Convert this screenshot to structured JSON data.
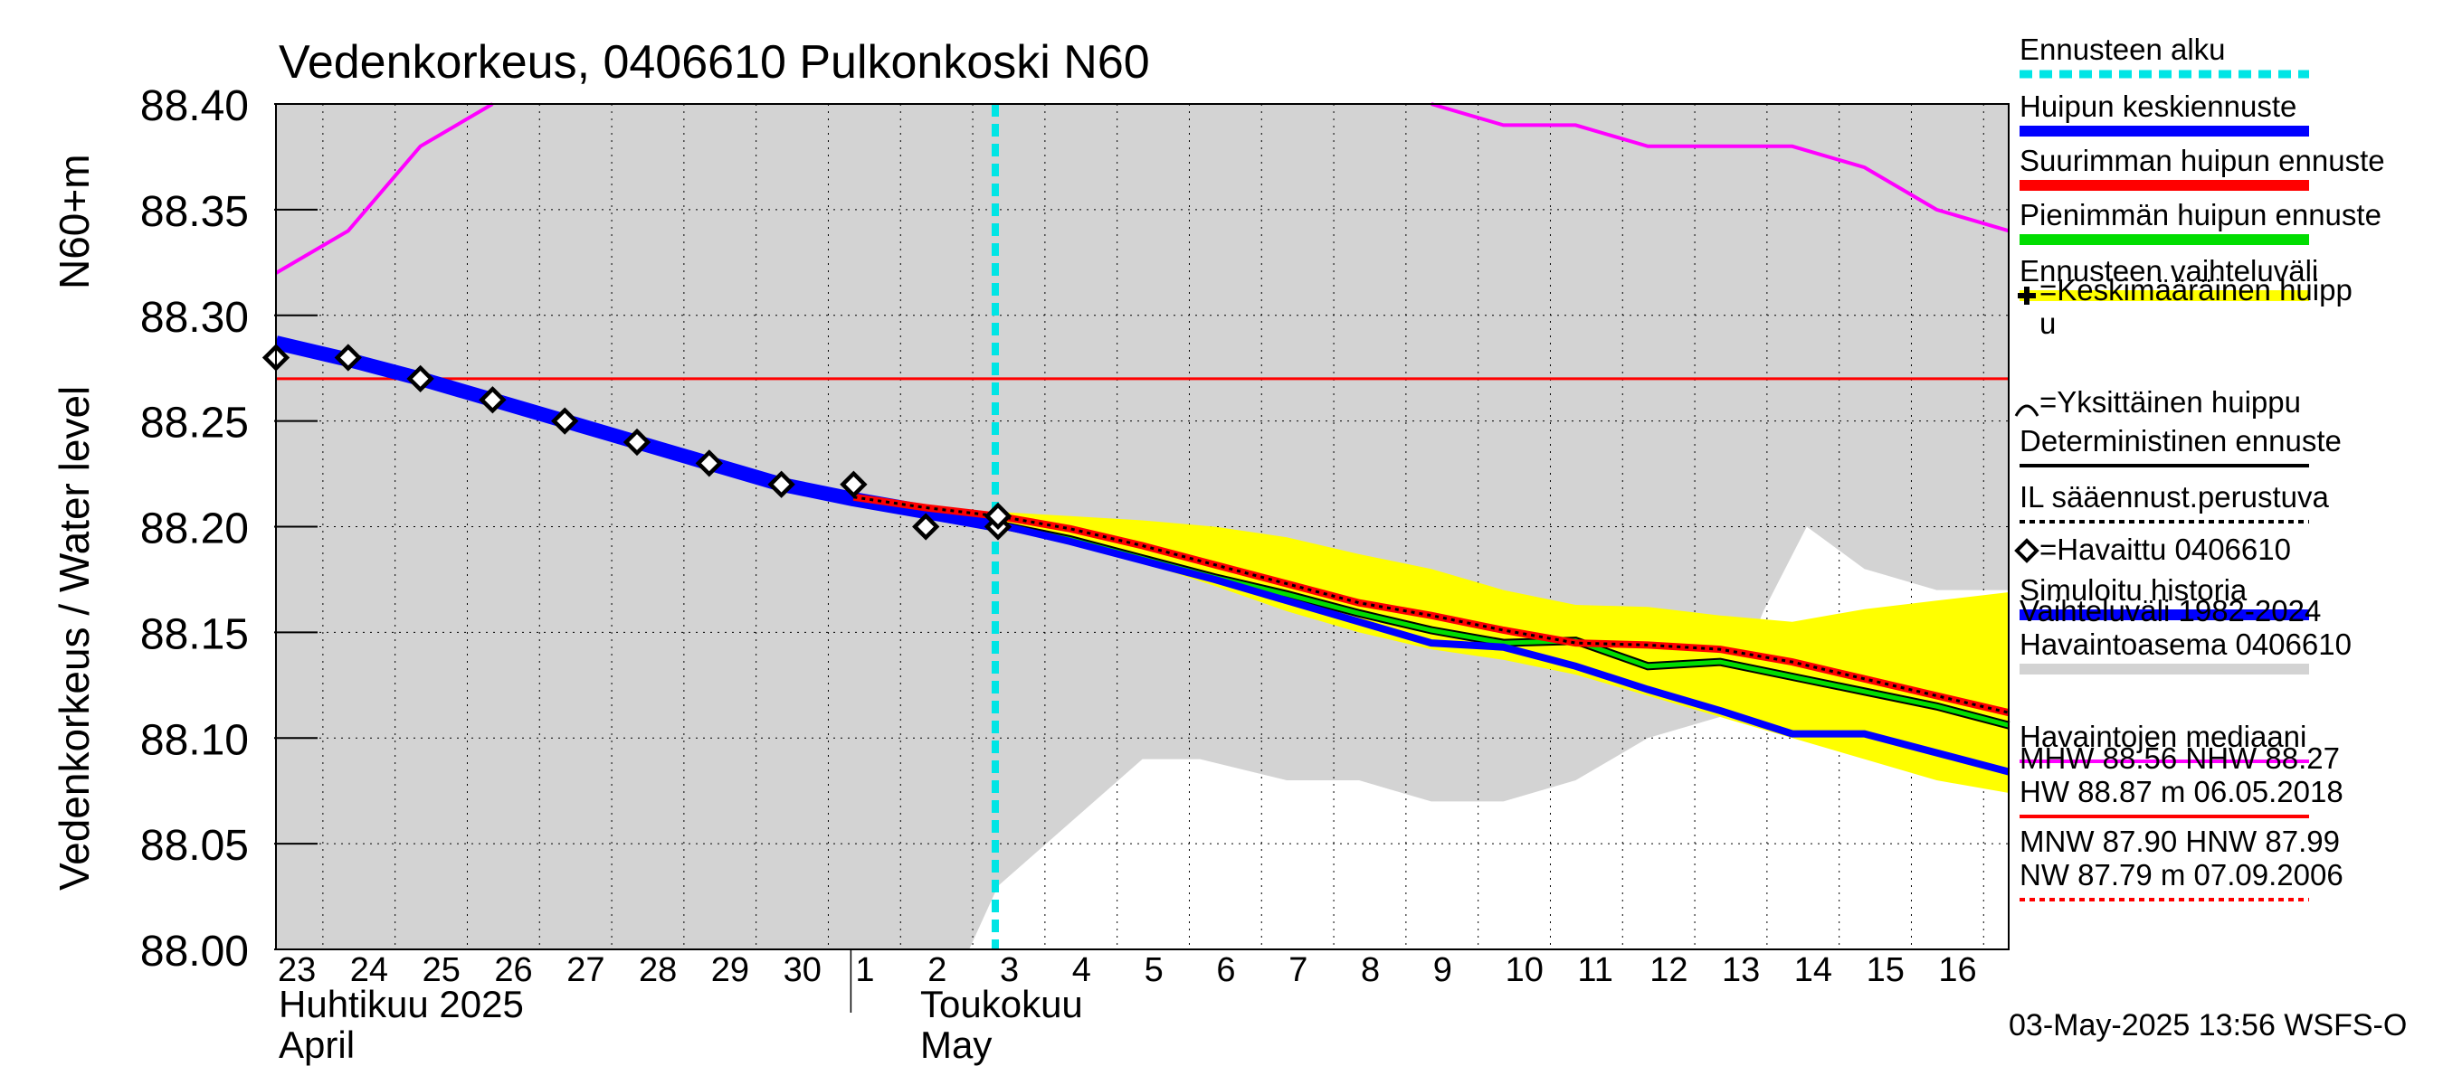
{
  "chart_data": {
    "type": "line",
    "title": "Vedenkorkeus, 0406610 Pulkonkoski N60",
    "ylabel_left": "Vedenkorkeus / Water level",
    "ylabel_right": "N60+m",
    "ylim": [
      88.0,
      88.4
    ],
    "y_ticks": [
      "88.00",
      "88.05",
      "88.10",
      "88.15",
      "88.20",
      "88.25",
      "88.30",
      "88.35",
      "88.40"
    ],
    "x_day_labels": [
      "23",
      "24",
      "25",
      "26",
      "27",
      "28",
      "29",
      "30",
      "1",
      "2",
      "3",
      "4",
      "5",
      "6",
      "7",
      "8",
      "9",
      "10",
      "11",
      "12",
      "13",
      "14",
      "15",
      "16"
    ],
    "x_month_labels": {
      "april_fi": "Huhtikuu  2025",
      "april_en": "April",
      "may_fi": "Toukokuu",
      "may_en": "May"
    },
    "forecast_start_day_index": 10,
    "grid": true,
    "history_band": {
      "upper": [
        [
          0,
          88.4
        ],
        [
          23.0,
          88.4
        ],
        [
          24.0,
          88.4
        ]
      ],
      "lower": [
        [
          0,
          88.0
        ],
        [
          9.6,
          88.0
        ],
        [
          10.0,
          88.03
        ],
        [
          12.0,
          88.09
        ],
        [
          12.8,
          88.09
        ],
        [
          14.0,
          88.08
        ],
        [
          15.0,
          88.08
        ],
        [
          16.0,
          88.07
        ],
        [
          17.0,
          88.07
        ],
        [
          18.0,
          88.08
        ],
        [
          19.0,
          88.1
        ],
        [
          20.0,
          88.11
        ],
        [
          20.6,
          88.16
        ],
        [
          21.2,
          88.2
        ],
        [
          22.0,
          88.18
        ],
        [
          23.0,
          88.17
        ],
        [
          24.0,
          88.17
        ]
      ]
    },
    "series": [
      {
        "name": "Havaintojen mediaani",
        "color": "#ff00ff",
        "segments": [
          [
            [
              0,
              88.32
            ],
            [
              1,
              88.34
            ],
            [
              2,
              88.38
            ],
            [
              3,
              88.4
            ]
          ],
          [
            [
              16,
              88.4
            ],
            [
              17,
              88.39
            ],
            [
              18,
              88.39
            ],
            [
              19,
              88.38
            ],
            [
              20,
              88.38
            ],
            [
              21,
              88.38
            ],
            [
              22,
              88.37
            ],
            [
              23,
              88.35
            ],
            [
              24,
              88.34
            ]
          ]
        ]
      },
      {
        "name": "Simuloitu historia",
        "color": "#0000ff",
        "points": [
          [
            0,
            88.287
          ],
          [
            1,
            88.279
          ],
          [
            2,
            88.27
          ],
          [
            3,
            88.26
          ],
          [
            4,
            88.25
          ],
          [
            5,
            88.24
          ],
          [
            6,
            88.23
          ],
          [
            7,
            88.22
          ],
          [
            8,
            88.213
          ],
          [
            9,
            88.207
          ],
          [
            10,
            88.201
          ]
        ]
      },
      {
        "name": "Ennusteen vaihteluväli",
        "color": "#ffff00",
        "upper": [
          [
            10,
            88.207
          ],
          [
            11,
            88.205
          ],
          [
            12,
            88.203
          ],
          [
            13,
            88.2
          ],
          [
            14,
            88.195
          ],
          [
            15,
            88.187
          ],
          [
            16,
            88.18
          ],
          [
            17,
            88.17
          ],
          [
            18,
            88.163
          ],
          [
            19,
            88.162
          ],
          [
            20,
            88.158
          ],
          [
            21,
            88.155
          ],
          [
            22,
            88.161
          ],
          [
            23,
            88.165
          ],
          [
            24,
            88.169
          ]
        ],
        "lower": [
          [
            10,
            88.2
          ],
          [
            11,
            88.194
          ],
          [
            12,
            88.183
          ],
          [
            13,
            88.172
          ],
          [
            14,
            88.16
          ],
          [
            15,
            88.15
          ],
          [
            16,
            88.142
          ],
          [
            17,
            88.137
          ],
          [
            18,
            88.13
          ],
          [
            19,
            88.12
          ],
          [
            20,
            88.11
          ],
          [
            21,
            88.1
          ],
          [
            22,
            88.09
          ],
          [
            23,
            88.08
          ],
          [
            24,
            88.074
          ]
        ]
      },
      {
        "name": "Huipun keskiennuste",
        "color": "#0000ff",
        "points": [
          [
            10,
            88.201
          ],
          [
            11,
            88.193
          ],
          [
            12,
            88.184
          ],
          [
            13,
            88.175
          ],
          [
            14,
            88.165
          ],
          [
            15,
            88.155
          ],
          [
            16,
            88.145
          ],
          [
            17,
            88.143
          ],
          [
            18,
            88.134
          ],
          [
            19,
            88.123
          ],
          [
            20,
            88.113
          ],
          [
            21,
            88.102
          ],
          [
            22,
            88.102
          ],
          [
            23,
            88.093
          ],
          [
            24,
            88.084
          ]
        ]
      },
      {
        "name": "Pienimmän huipun ennuste",
        "color": "#00dd00",
        "points": [
          [
            10,
            88.201
          ],
          [
            11,
            88.194
          ],
          [
            12,
            88.185
          ],
          [
            13,
            88.176
          ],
          [
            14,
            88.168
          ],
          [
            15,
            88.159
          ],
          [
            16,
            88.151
          ],
          [
            17,
            88.145
          ],
          [
            18,
            88.146
          ],
          [
            19,
            88.134
          ],
          [
            20,
            88.136
          ],
          [
            21,
            88.129
          ],
          [
            22,
            88.122
          ],
          [
            23,
            88.115
          ],
          [
            24,
            88.106
          ]
        ]
      },
      {
        "name": "Deterministinen ennuste",
        "color": "#000000",
        "points": [
          [
            8,
            88.214
          ],
          [
            9,
            88.209
          ],
          [
            10,
            88.205
          ],
          [
            11,
            88.199
          ],
          [
            12,
            88.191
          ],
          [
            13,
            88.182
          ],
          [
            14,
            88.173
          ],
          [
            15,
            88.164
          ],
          [
            16,
            88.158
          ],
          [
            17,
            88.151
          ],
          [
            18,
            88.145
          ],
          [
            19,
            88.144
          ],
          [
            20,
            88.142
          ],
          [
            21,
            88.136
          ],
          [
            22,
            88.128
          ],
          [
            23,
            88.12
          ],
          [
            24,
            88.112
          ]
        ]
      },
      {
        "name": "Suurimman huipun ennuste",
        "color": "#ff0000",
        "points": [
          [
            8,
            88.214
          ],
          [
            9,
            88.209
          ],
          [
            10,
            88.205
          ],
          [
            11,
            88.199
          ],
          [
            12,
            88.191
          ],
          [
            13,
            88.182
          ],
          [
            14,
            88.173
          ],
          [
            15,
            88.164
          ],
          [
            16,
            88.158
          ],
          [
            17,
            88.151
          ],
          [
            18,
            88.145
          ],
          [
            19,
            88.144
          ],
          [
            20,
            88.142
          ],
          [
            21,
            88.136
          ],
          [
            22,
            88.128
          ],
          [
            23,
            88.12
          ],
          [
            24,
            88.112
          ]
        ]
      },
      {
        "name": "Havaittu 0406610",
        "color": "#000000",
        "points": [
          [
            0,
            88.28
          ],
          [
            1,
            88.28
          ],
          [
            2,
            88.27
          ],
          [
            3,
            88.26
          ],
          [
            4,
            88.25
          ],
          [
            5,
            88.24
          ],
          [
            6,
            88.23
          ],
          [
            7,
            88.22
          ],
          [
            8,
            88.22
          ],
          [
            9,
            88.2
          ],
          [
            10,
            88.2
          ],
          [
            10,
            88.205
          ]
        ]
      }
    ],
    "reference_lines": [
      {
        "name": "NHW",
        "value": 88.27,
        "color": "#ff0000"
      }
    ],
    "legend": {
      "placement": "right",
      "items": [
        {
          "label": "Ennusteen alku",
          "color": "#00e5e5",
          "style": "dashed"
        },
        {
          "label": "Huipun keskiennuste",
          "color": "#0000ff",
          "style": "solid"
        },
        {
          "label": "Suurimman huipun ennuste",
          "color": "#ff0000",
          "style": "solid"
        },
        {
          "label": "Pienimmän huipun ennuste",
          "color": "#00dd00",
          "style": "solid"
        },
        {
          "label": "Ennusteen vaihteluväli",
          "color": "#ffff00",
          "style": "solid"
        },
        {
          "label": "=Keskimääräinen huipp\nu",
          "color": "#000000",
          "style": "plus"
        },
        {
          "label": "=Yksittäinen huippu",
          "color": "#000000",
          "style": "arc"
        },
        {
          "label": "Deterministinen ennuste",
          "color": "#000000",
          "style": "thin"
        },
        {
          "label": "IL sääennust.perustuva",
          "color": "#000000",
          "style": "dotted"
        },
        {
          "label": "=Havaittu 0406610",
          "color": "#000000",
          "style": "diamond"
        },
        {
          "label": "Simuloitu historia",
          "color": "#0000ff",
          "style": "solid"
        },
        {
          "label": "Vaihteluväli 1982-2024\n Havaintoasema 0406610",
          "color": "#d3d3d3",
          "style": "solid"
        },
        {
          "label": "Havaintojen mediaani",
          "color": "#ff00ff",
          "style": "thin"
        },
        {
          "label": "MHW  88.56 NHW  88.27\nHW  88.87 m 06.05.2018",
          "color": "#ff0000",
          "style": "thin"
        },
        {
          "label": "MNW  87.90 HNW  87.99\nNW  87.79 m 07.09.2006",
          "color": "#ff0000",
          "style": "dotted"
        }
      ]
    },
    "footer": "03-May-2025 13:56 WSFS-O"
  }
}
